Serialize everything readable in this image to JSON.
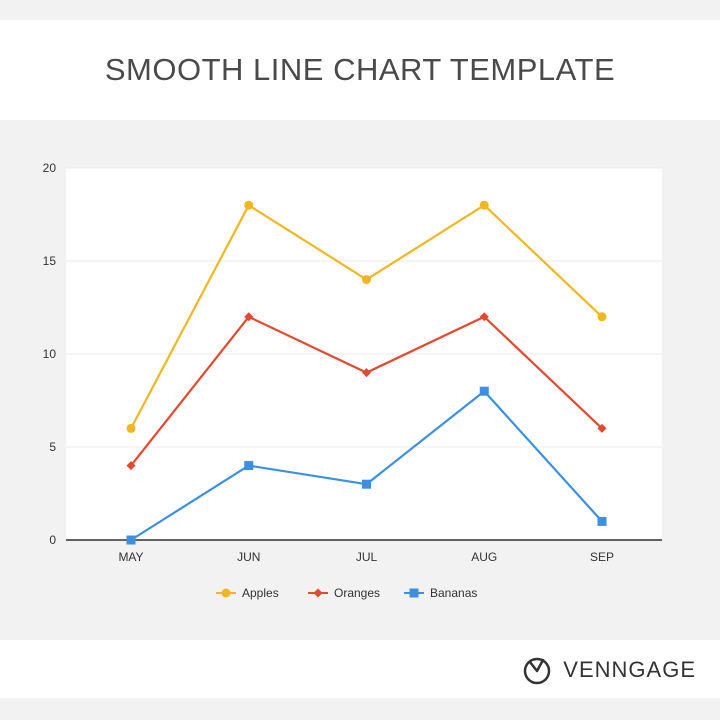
{
  "header": {
    "title": "SMOOTH LINE CHART TEMPLATE"
  },
  "brand": {
    "name": "VENNGAGE",
    "icon": "venngage-logo-icon"
  },
  "chart_data": {
    "type": "line",
    "title": "",
    "xlabel": "",
    "ylabel": "",
    "categories": [
      "MAY",
      "JUN",
      "JUL",
      "AUG",
      "SEP"
    ],
    "ylim": [
      0,
      20
    ],
    "yticks": [
      "0",
      "5",
      "10",
      "15",
      "20"
    ],
    "grid": true,
    "legend_position": "bottom",
    "series": [
      {
        "name": "Apples",
        "values": [
          6,
          18,
          14,
          18,
          12
        ],
        "color": "#f0b723",
        "marker": "circle"
      },
      {
        "name": "Oranges",
        "values": [
          4,
          12,
          9,
          12,
          6
        ],
        "color": "#e2492f",
        "marker": "diamond"
      },
      {
        "name": "Bananas",
        "values": [
          0,
          4,
          3,
          8,
          1
        ],
        "color": "#3d8fe0",
        "marker": "square"
      }
    ]
  }
}
